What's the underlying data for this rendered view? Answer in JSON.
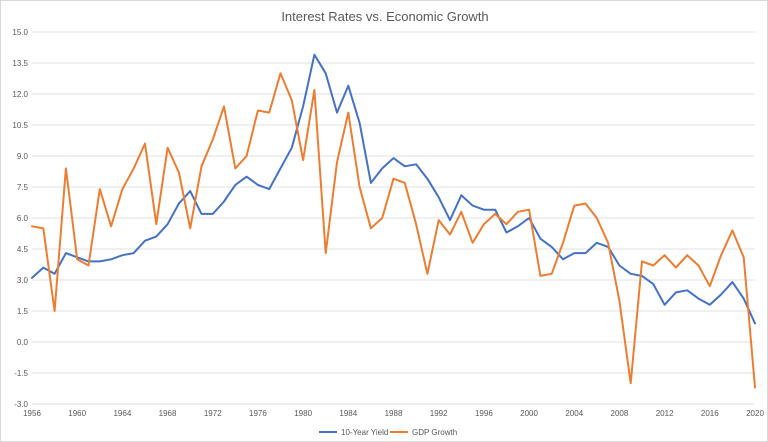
{
  "chart_data": {
    "type": "line",
    "title": "Interest Rates vs. Economic Growth",
    "xlabel": "",
    "ylabel": "",
    "xlim": [
      1956,
      2020
    ],
    "ylim": [
      -3.0,
      15.0
    ],
    "y_ticks": [
      "15.0",
      "13.5",
      "12.0",
      "10.5",
      "9.0",
      "7.5",
      "6.0",
      "4.5",
      "3.0",
      "1.5",
      "0.0",
      "-1.5",
      "-3.0"
    ],
    "x_ticks": [
      "1956",
      "1960",
      "1964",
      "1968",
      "1972",
      "1976",
      "1980",
      "1984",
      "1988",
      "1992",
      "1996",
      "2000",
      "2004",
      "2008",
      "2012",
      "2016",
      "2020"
    ],
    "grid": "horizontal",
    "legend_position": "bottom",
    "x": [
      1956,
      1957,
      1958,
      1959,
      1960,
      1961,
      1962,
      1963,
      1964,
      1965,
      1966,
      1967,
      1968,
      1969,
      1970,
      1971,
      1972,
      1973,
      1974,
      1975,
      1976,
      1977,
      1978,
      1979,
      1980,
      1981,
      1982,
      1983,
      1984,
      1985,
      1986,
      1987,
      1988,
      1989,
      1990,
      1991,
      1992,
      1993,
      1994,
      1995,
      1996,
      1997,
      1998,
      1999,
      2000,
      2001,
      2002,
      2003,
      2004,
      2005,
      2006,
      2007,
      2008,
      2009,
      2010,
      2011,
      2012,
      2013,
      2014,
      2015,
      2016,
      2017,
      2018,
      2019,
      2020
    ],
    "series": [
      {
        "name": "10-Year Yield",
        "color": "#4472c4",
        "values": [
          3.1,
          3.6,
          3.3,
          4.3,
          4.1,
          3.9,
          3.9,
          4.0,
          4.2,
          4.3,
          4.9,
          5.1,
          5.7,
          6.7,
          7.3,
          6.2,
          6.2,
          6.8,
          7.6,
          8.0,
          7.6,
          7.4,
          8.4,
          9.4,
          11.4,
          13.9,
          13.0,
          11.1,
          12.4,
          10.6,
          7.7,
          8.4,
          8.9,
          8.5,
          8.6,
          7.9,
          7.0,
          5.9,
          7.1,
          6.6,
          6.4,
          6.4,
          5.3,
          5.6,
          6.0,
          5.0,
          4.6,
          4.0,
          4.3,
          4.3,
          4.8,
          4.6,
          3.7,
          3.3,
          3.2,
          2.8,
          1.8,
          2.4,
          2.5,
          2.1,
          1.8,
          2.3,
          2.9,
          2.1,
          0.9
        ]
      },
      {
        "name": "GDP Growth",
        "color": "#ed7d31",
        "values": [
          5.6,
          5.5,
          1.5,
          8.4,
          4.0,
          3.7,
          7.4,
          5.6,
          7.4,
          8.4,
          9.6,
          5.7,
          9.4,
          8.2,
          5.5,
          8.5,
          9.8,
          11.4,
          8.4,
          9.0,
          11.2,
          11.1,
          13.0,
          11.7,
          8.8,
          12.2,
          4.3,
          8.7,
          11.1,
          7.5,
          5.5,
          6.0,
          7.9,
          7.7,
          5.7,
          3.3,
          5.9,
          5.2,
          6.3,
          4.8,
          5.7,
          6.2,
          5.7,
          6.3,
          6.4,
          3.2,
          3.3,
          4.8,
          6.6,
          6.7,
          6.0,
          4.8,
          2.0,
          -2.0,
          3.9,
          3.7,
          4.2,
          3.6,
          4.2,
          3.7,
          2.7,
          4.2,
          5.4,
          4.1,
          -2.2
        ]
      }
    ]
  }
}
